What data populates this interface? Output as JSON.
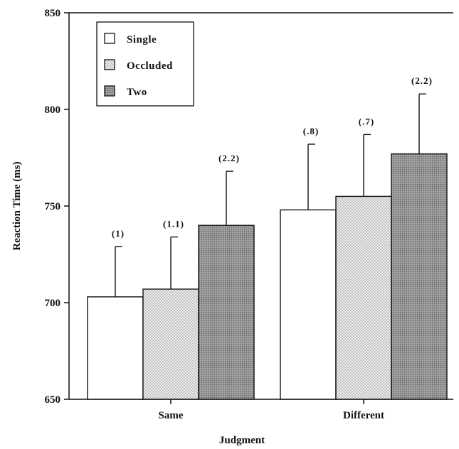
{
  "chart_data": {
    "type": "bar",
    "title": "",
    "xlabel": "Judgment",
    "ylabel": "Reaction Time (ms)",
    "ylim": [
      650,
      850
    ],
    "yticks": [
      650,
      700,
      750,
      800,
      850
    ],
    "grid": false,
    "legend_position": "top-left",
    "categories": [
      "Same",
      "Different"
    ],
    "series": [
      {
        "name": "Single",
        "values": [
          703,
          748
        ],
        "errors": [
          26,
          34
        ],
        "labels": [
          "(1)",
          "(.8)"
        ]
      },
      {
        "name": "Occluded",
        "values": [
          707,
          755
        ],
        "errors": [
          27,
          32
        ],
        "labels": [
          "(1.1)",
          "(.7)"
        ]
      },
      {
        "name": "Two",
        "values": [
          740,
          777
        ],
        "errors": [
          28,
          31
        ],
        "labels": [
          "(2.2)",
          "(2.2)"
        ]
      }
    ],
    "series_fills": [
      "#ffffff",
      "#e2e2e2",
      "#9a9a9a"
    ]
  }
}
